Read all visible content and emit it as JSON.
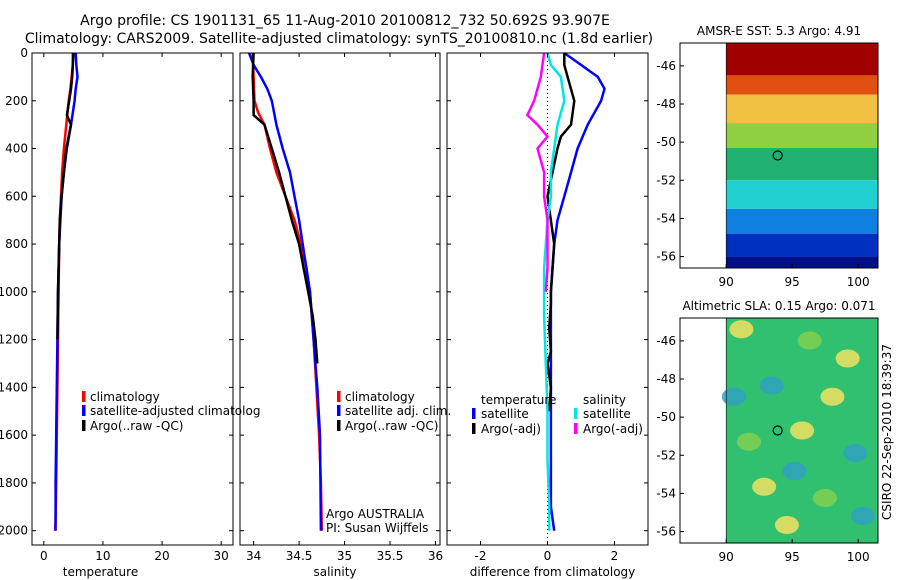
{
  "header": {
    "title_line1": "Argo profile: CS 1901131_65 11-Aug-2010 20100812_732 50.692S 93.907E",
    "title_line2": "Climatology: CARS2009. Satellite-adjusted climatology: synTS_20100810.nc (1.8d earlier)"
  },
  "colors": {
    "climatology": "#ff0000",
    "satellite": "#0000ff",
    "argo": "#000000",
    "satellite_salinity": "#00e5e5",
    "argo_salinity_adj": "#ff00ff"
  },
  "chart_data": [
    {
      "id": "temperature",
      "type": "line",
      "xlabel": "temperature",
      "xlim": [
        -2,
        32
      ],
      "xticks": [
        0,
        10,
        20,
        30
      ],
      "ylim": [
        2060,
        0
      ],
      "yticks": [
        0,
        200,
        400,
        600,
        800,
        1000,
        1200,
        1400,
        1600,
        1800,
        2000
      ],
      "legend": {
        "position": "lower-middle",
        "entries": [
          "climatology",
          "satellite-adjusted climatolog",
          "Argo(..raw -QC)"
        ]
      },
      "series": [
        {
          "name": "climatology",
          "color": "#ff0000",
          "x": [
            4.9,
            4.9,
            4.7,
            4.5,
            4.2,
            3.8,
            3.4,
            3.1,
            2.9,
            2.7,
            2.6,
            2.5,
            2.4,
            2.3,
            2.2,
            2.1,
            2.0,
            1.9
          ],
          "y": [
            0,
            50,
            100,
            150,
            200,
            300,
            400,
            500,
            600,
            700,
            800,
            1000,
            1200,
            1400,
            1600,
            1800,
            1950,
            2000
          ]
        },
        {
          "name": "satellite-adjusted climatolog",
          "color": "#0000ff",
          "x": [
            5.4,
            5.5,
            5.7,
            5.4,
            5.2,
            4.6,
            3.9,
            3.4,
            3.0,
            2.8,
            2.6,
            2.4,
            2.3,
            2.2,
            2.1,
            2.0,
            2.0
          ],
          "y": [
            0,
            50,
            100,
            150,
            200,
            300,
            400,
            500,
            600,
            700,
            800,
            1000,
            1200,
            1400,
            1600,
            1800,
            2000
          ]
        },
        {
          "name": "Argo(..raw -QC)",
          "color": "#000000",
          "x": [
            5.0,
            4.9,
            4.8,
            4.6,
            4.3,
            3.9,
            4.6,
            3.8,
            3.4,
            3.0,
            2.7,
            2.6,
            2.4,
            2.3
          ],
          "y": [
            0,
            50,
            100,
            150,
            200,
            260,
            300,
            400,
            500,
            600,
            700,
            800,
            1000,
            1200
          ]
        }
      ]
    },
    {
      "id": "salinity",
      "type": "line",
      "xlabel": "salinity",
      "xlim": [
        33.85,
        36.05
      ],
      "xticks": [
        34,
        34.5,
        35,
        35.5,
        36
      ],
      "xticklabels": [
        "34",
        "34.5",
        "35",
        "35.5",
        "36"
      ],
      "ylim": [
        2060,
        0
      ],
      "legend": {
        "position": "lower-middle",
        "entries": [
          "climatology",
          "satellite adj. clim.",
          "Argo(..raw -QC)"
        ]
      },
      "annotations": [
        "Argo AUSTRALIA",
        "PI: Susan Wijffels"
      ],
      "series": [
        {
          "name": "climatology",
          "color": "#ff0000",
          "x": [
            33.99,
            34.0,
            34.01,
            34.05,
            34.12,
            34.18,
            34.25,
            34.35,
            34.45,
            34.52,
            34.58,
            34.62,
            34.66,
            34.69,
            34.72,
            34.74,
            34.75
          ],
          "y": [
            0,
            100,
            200,
            250,
            300,
            400,
            500,
            600,
            700,
            800,
            900,
            1000,
            1200,
            1400,
            1600,
            1800,
            2000
          ]
        },
        {
          "name": "satellite adj. clim.",
          "color": "#0000ff",
          "x": [
            33.95,
            34.0,
            34.08,
            34.15,
            34.2,
            34.25,
            34.32,
            34.4,
            34.45,
            34.5,
            34.54,
            34.58,
            34.62,
            34.66,
            34.7,
            34.73,
            34.74
          ],
          "y": [
            0,
            50,
            100,
            150,
            200,
            300,
            400,
            500,
            600,
            700,
            800,
            900,
            1000,
            1200,
            1400,
            1600,
            2000
          ]
        },
        {
          "name": "Argo(..raw -QC)",
          "color": "#000000",
          "x": [
            34.0,
            33.99,
            34.0,
            34.0,
            34.12,
            34.2,
            34.28,
            34.35,
            34.42,
            34.5,
            34.55,
            34.6,
            34.65,
            34.68,
            34.7
          ],
          "y": [
            0,
            100,
            200,
            260,
            300,
            400,
            500,
            600,
            700,
            800,
            900,
            1000,
            1100,
            1200,
            1300
          ]
        }
      ]
    },
    {
      "id": "difference",
      "type": "line",
      "xlabel": "difference from climatology",
      "xlim": [
        -3.0,
        3.0
      ],
      "xticks": [
        -2,
        0,
        2
      ],
      "ylim": [
        2060,
        0
      ],
      "legend": {
        "position": "lower",
        "group_titles": [
          "temperature",
          "salinity"
        ],
        "entries": [
          "satellite",
          "Argo(-adj)",
          "satellite",
          "Argo(-adj)"
        ]
      },
      "series": [
        {
          "name": "temperature satellite",
          "color": "#0000ff",
          "x": [
            0.5,
            1.0,
            1.5,
            1.7,
            1.6,
            1.2,
            0.9,
            0.7,
            0.5,
            0.3,
            0.2,
            0.15,
            0.1,
            0.1,
            0.1,
            0.1,
            0.1,
            0.1,
            0.2
          ],
          "y": [
            0,
            50,
            100,
            150,
            200,
            300,
            400,
            500,
            600,
            700,
            800,
            900,
            1000,
            1200,
            1400,
            1600,
            1800,
            1900,
            2000
          ]
        },
        {
          "name": "temperature Argo(-adj)",
          "color": "#000000",
          "x": [
            0.5,
            0.5,
            0.6,
            0.8,
            0.7,
            0.4,
            0.3,
            0.0,
            0.2,
            0.1,
            0.1,
            0.05,
            0.1,
            0.0,
            0.1,
            0.05
          ],
          "y": [
            0,
            50,
            100,
            200,
            300,
            350,
            400,
            600,
            800,
            1000,
            1050,
            1150,
            1250,
            1300,
            1400,
            1500
          ]
        },
        {
          "name": "salinity satellite",
          "color": "#00e5e5",
          "x": [
            0.0,
            0.1,
            0.4,
            0.5,
            0.3,
            0.2,
            0.1,
            0.1,
            0.0,
            -0.05,
            -0.1,
            -0.1,
            -0.05,
            0.0,
            0.0,
            0.05,
            0.05
          ],
          "y": [
            0,
            50,
            100,
            200,
            300,
            400,
            500,
            600,
            700,
            800,
            900,
            1100,
            1300,
            1500,
            1700,
            1900,
            2000
          ]
        },
        {
          "name": "salinity Argo(-adj)",
          "color": "#ff00ff",
          "x": [
            -0.1,
            -0.2,
            -0.4,
            -0.6,
            -0.3,
            0.0,
            -0.3,
            -0.1,
            -0.1,
            0.0,
            0.0,
            0.0,
            -0.05
          ],
          "y": [
            0,
            100,
            200,
            260,
            300,
            350,
            400,
            500,
            600,
            700,
            800,
            900,
            1000
          ]
        }
      ]
    },
    {
      "id": "sst_map",
      "type": "heatmap",
      "title": "AMSR-E SST: 5.3 Argo: 4.91",
      "xlim": [
        86.5,
        101.5
      ],
      "xticks": [
        90,
        95,
        100
      ],
      "ylim": [
        -56.6,
        -44.8
      ],
      "yticks": [
        -46,
        -48,
        -50,
        -52,
        -54,
        -56
      ],
      "data_x_start": 90,
      "marker": [
        93.9,
        -50.7
      ],
      "colorscale_rows": [
        {
          "lat_top": -44.8,
          "color": "#a00000"
        },
        {
          "lat_top": -46.5,
          "color": "#e05010"
        },
        {
          "lat_top": -47.5,
          "color": "#f0c040"
        },
        {
          "lat_top": -49.0,
          "color": "#90d040"
        },
        {
          "lat_top": -50.3,
          "color": "#20b070"
        },
        {
          "lat_top": -52.0,
          "color": "#20d0d0"
        },
        {
          "lat_top": -53.5,
          "color": "#1080e0"
        },
        {
          "lat_top": -54.8,
          "color": "#0030c0"
        },
        {
          "lat_top": -56.0,
          "color": "#00108a"
        }
      ]
    },
    {
      "id": "sla_map",
      "type": "heatmap",
      "title": "Altimetric SLA: 0.15 Argo: 0.071",
      "xlim": [
        86.5,
        101.5
      ],
      "xticks": [
        90,
        95,
        100
      ],
      "ylim": [
        -56.6,
        -44.8
      ],
      "yticks": [
        -46,
        -48,
        -50,
        -52,
        -54,
        -56
      ],
      "data_x_start": 90,
      "marker": [
        93.9,
        -50.7
      ],
      "base_color": "#30c070",
      "patch_colors": [
        "#f0e060",
        "#80d050",
        "#30a0c0"
      ]
    }
  ],
  "footer": {
    "side_text": "CSIRO 22-Sep-2010 18:39:37"
  }
}
